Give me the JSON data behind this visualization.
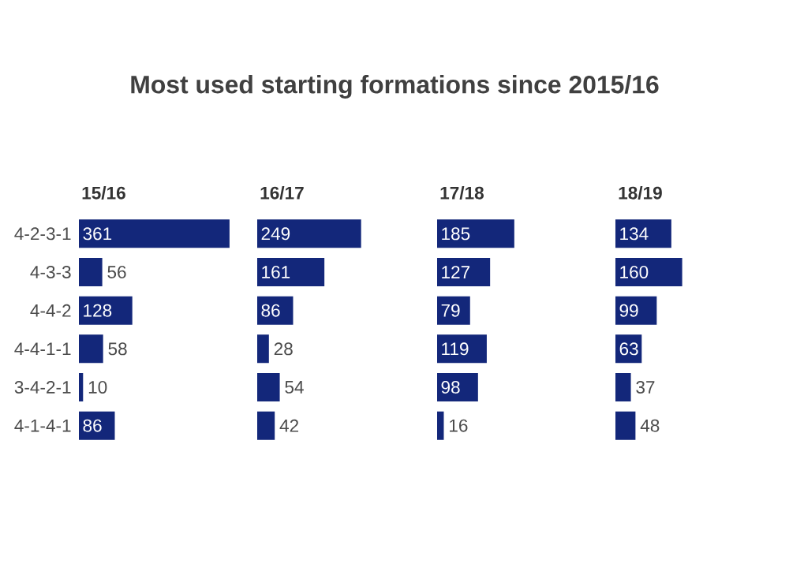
{
  "chart_data": [
    {
      "type": "bar",
      "orientation": "horizontal",
      "title": "15/16",
      "annotations": [
        "Most used starting formations since 2015/16"
      ],
      "categories": [
        "4-2-3-1",
        "4-3-3",
        "4-4-2",
        "4-4-1-1",
        "3-4-2-1",
        "4-1-4-1"
      ],
      "values": [
        361,
        56,
        128,
        58,
        10,
        86
      ],
      "color": "#13277a",
      "data_labels": true,
      "tick_labels": "y"
    },
    {
      "type": "bar",
      "orientation": "horizontal",
      "title": "16/17",
      "categories": [
        null,
        null,
        null,
        null,
        null,
        null
      ],
      "values": [
        249,
        161,
        86,
        28,
        54,
        42
      ],
      "color": "#13277a",
      "data_labels": true,
      "tick_labels": false
    },
    {
      "type": "bar",
      "orientation": "horizontal",
      "title": "17/18",
      "categories": [
        null,
        null,
        null,
        null,
        null,
        null
      ],
      "values": [
        185,
        127,
        79,
        119,
        98,
        16
      ],
      "color": "#13277a",
      "data_labels": true,
      "tick_labels": false
    },
    {
      "type": "bar",
      "orientation": "horizontal",
      "title": "18/19",
      "categories": [
        null,
        null,
        null,
        null,
        null,
        null
      ],
      "values": [
        134,
        160,
        99,
        63,
        37,
        48
      ],
      "color": "#13277a",
      "data_labels": true,
      "tick_labels": false
    }
  ]
}
